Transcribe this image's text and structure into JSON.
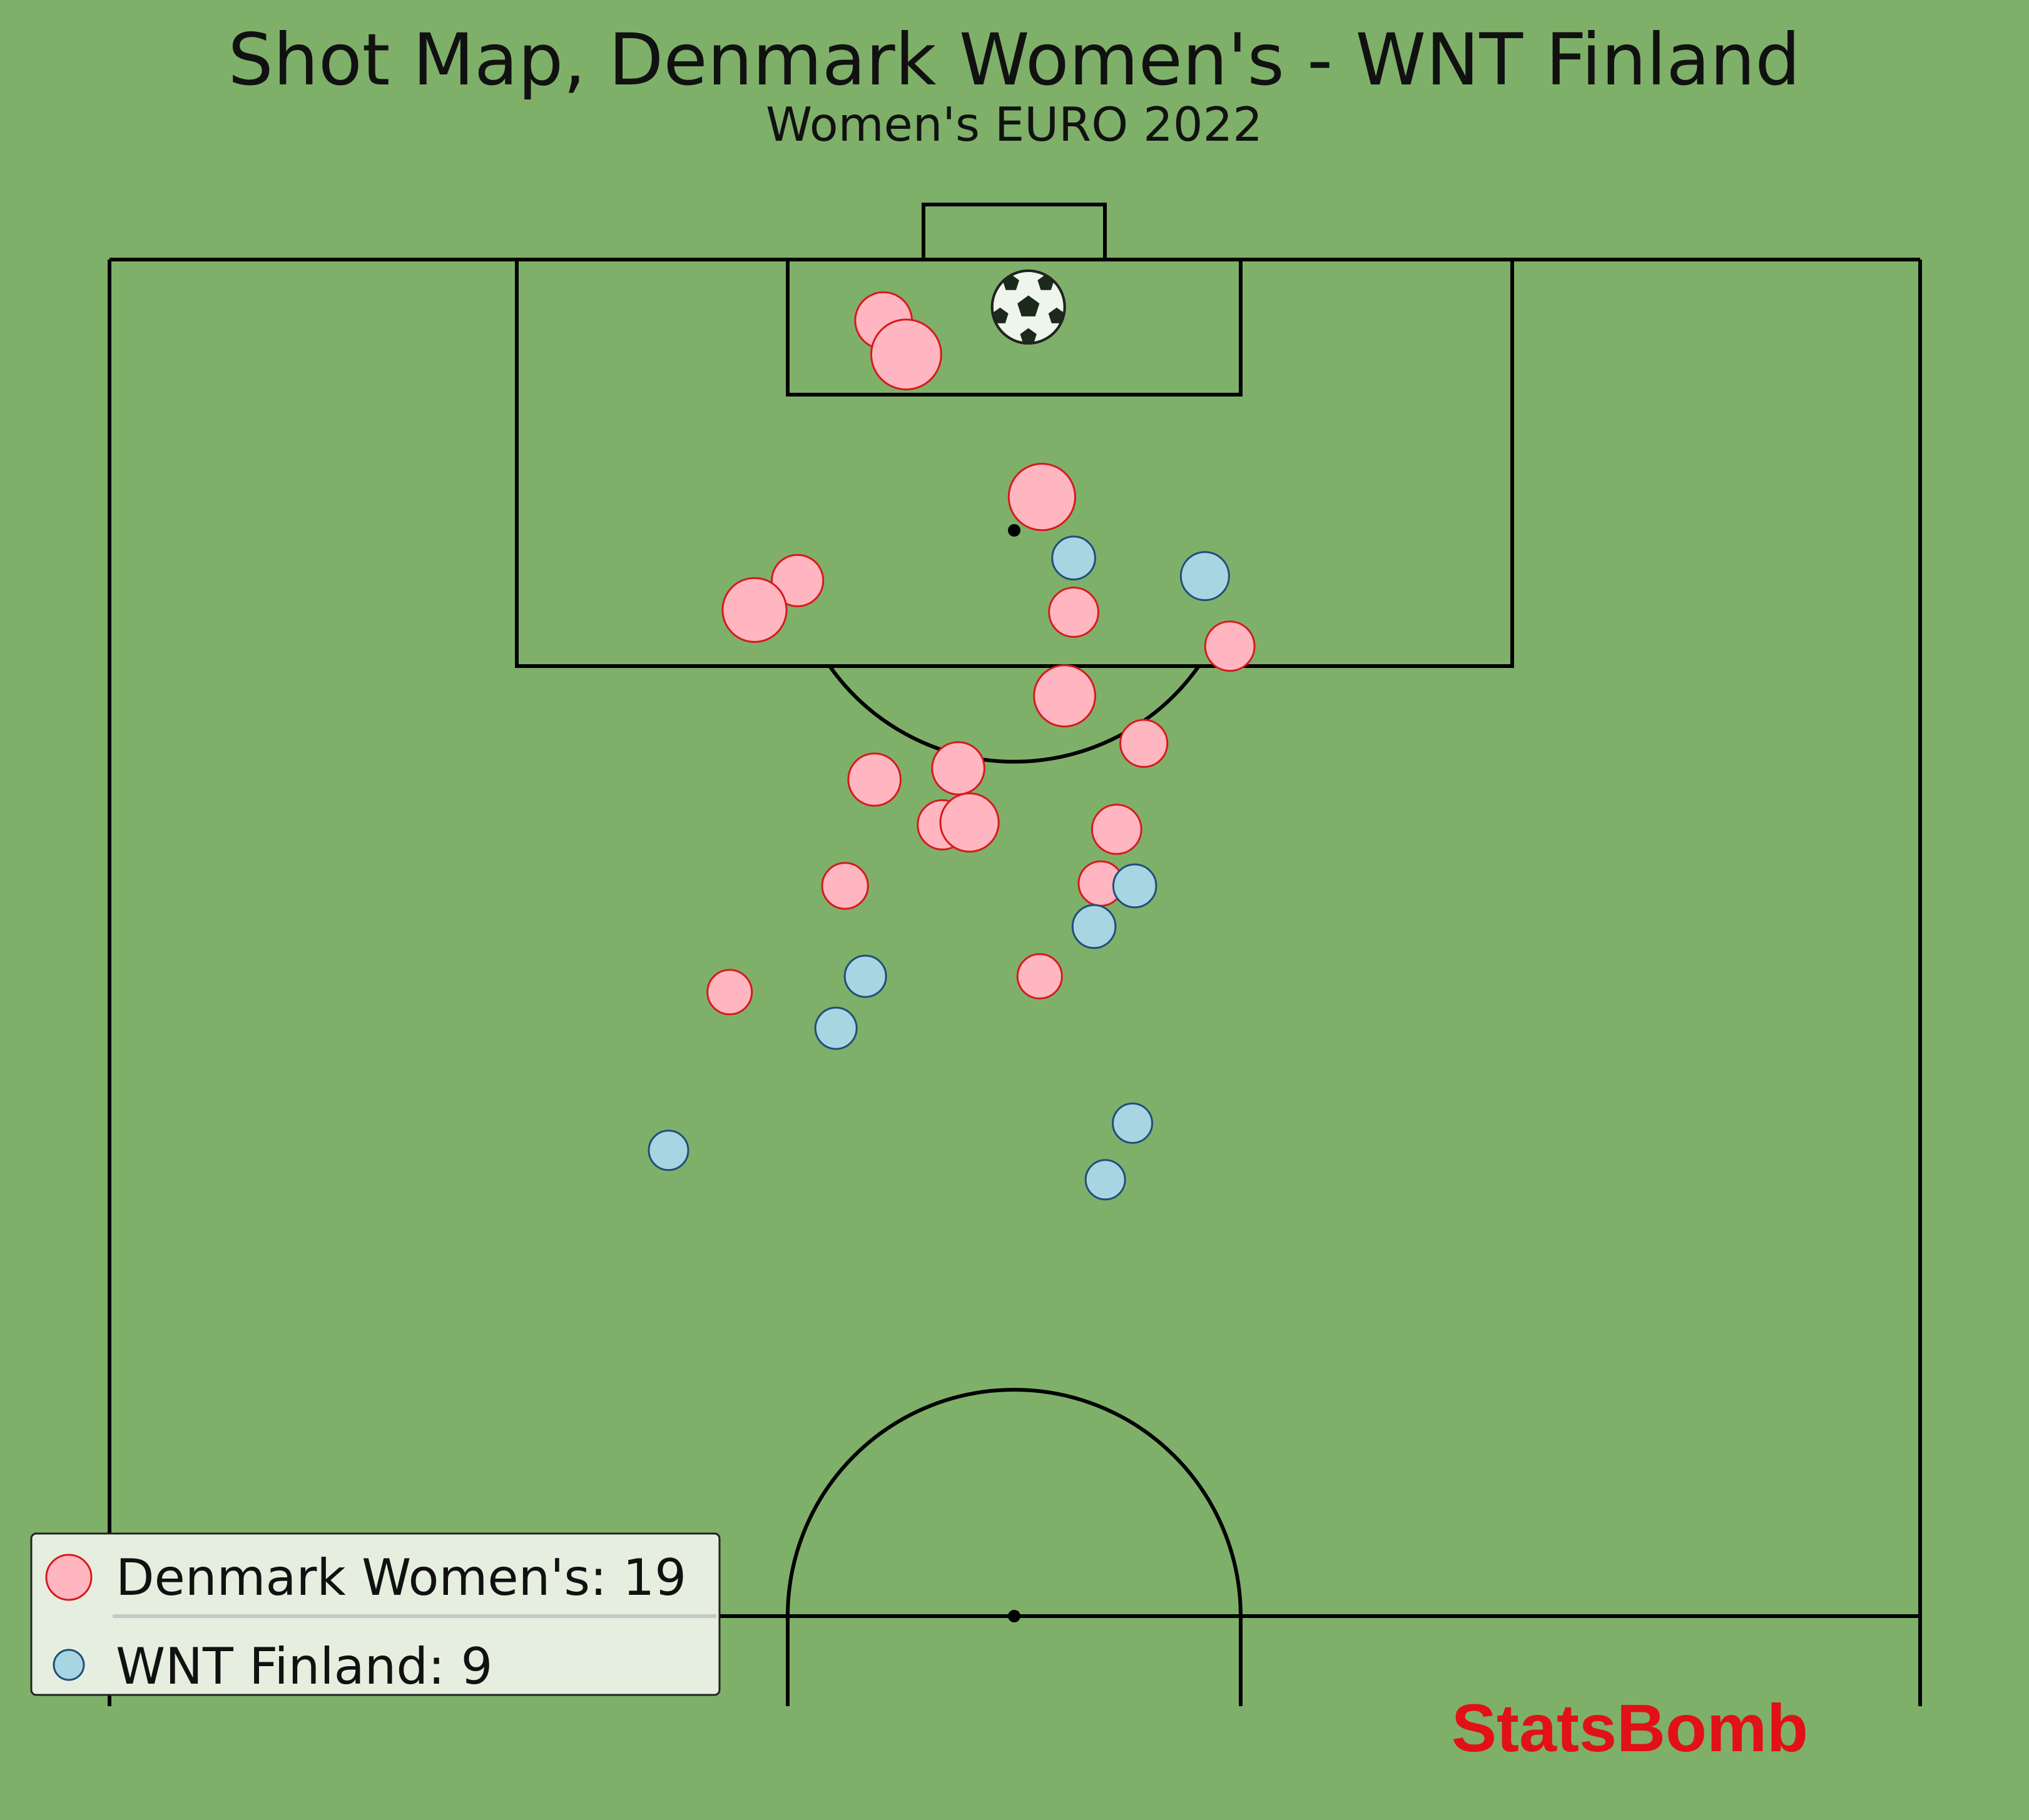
{
  "chart_data": {
    "type": "scatter",
    "title": "Shot Map, Denmark Women's - WNT Finland",
    "subtitle": "Women's EURO 2022",
    "pitch": "StatsBomb half-pitch, vertical, attacking upward",
    "legend_placement": "bottom-left",
    "series": [
      {
        "name": "Denmark Women's",
        "legend_label": "Denmark Women's: 19",
        "count": 19,
        "fill": "#ffb6c1",
        "edge": "#d7191c",
        "goals": [
          {
            "x": 117.9,
            "y": 40.6,
            "xg": 0.6
          }
        ],
        "shots": [
          {
            "x": 117.3,
            "y": 34.2,
            "xg": 0.18
          },
          {
            "x": 115.8,
            "y": 35.2,
            "xg": 0.38
          },
          {
            "x": 109.5,
            "y": 41.2,
            "xg": 0.32
          },
          {
            "x": 105.8,
            "y": 30.4,
            "xg": 0.12
          },
          {
            "x": 104.5,
            "y": 28.5,
            "xg": 0.28
          },
          {
            "x": 104.4,
            "y": 42.6,
            "xg": 0.1
          },
          {
            "x": 102.9,
            "y": 49.5,
            "xg": 0.1
          },
          {
            "x": 100.7,
            "y": 42.2,
            "xg": 0.24
          },
          {
            "x": 98.6,
            "y": 45.7,
            "xg": 0.08
          },
          {
            "x": 97.5,
            "y": 37.5,
            "xg": 0.13
          },
          {
            "x": 97.0,
            "y": 33.8,
            "xg": 0.13
          },
          {
            "x": 95.0,
            "y": 36.8,
            "xg": 0.1
          },
          {
            "x": 95.1,
            "y": 38.0,
            "xg": 0.2
          },
          {
            "x": 94.8,
            "y": 44.5,
            "xg": 0.1
          },
          {
            "x": 92.3,
            "y": 32.5,
            "xg": 0.07
          },
          {
            "x": 92.4,
            "y": 43.8,
            "xg": 0.06
          },
          {
            "x": 88.3,
            "y": 41.1,
            "xg": 0.06
          },
          {
            "x": 87.6,
            "y": 27.4,
            "xg": 0.06
          }
        ]
      },
      {
        "name": "WNT Finland",
        "legend_label": "WNT Finland: 9",
        "count": 9,
        "fill": "#a8d5e2",
        "edge": "#1f4e79",
        "goals": [],
        "shots": [
          {
            "x": 106.8,
            "y": 42.6,
            "xg": 0.05
          },
          {
            "x": 106.0,
            "y": 48.4,
            "xg": 0.09
          },
          {
            "x": 92.3,
            "y": 45.3,
            "xg": 0.05
          },
          {
            "x": 90.5,
            "y": 43.5,
            "xg": 0.05
          },
          {
            "x": 88.3,
            "y": 33.4,
            "xg": 0.04
          },
          {
            "x": 86.0,
            "y": 32.1,
            "xg": 0.04
          },
          {
            "x": 81.8,
            "y": 45.2,
            "xg": 0.03
          },
          {
            "x": 79.3,
            "y": 44.0,
            "xg": 0.03
          },
          {
            "x": 80.6,
            "y": 24.7,
            "xg": 0.03
          }
        ]
      }
    ]
  },
  "watermark": {
    "text": "StatsBomb",
    "color": "#e21017"
  },
  "colors": {
    "pitch": "#7fb069",
    "lines": "#000000",
    "legend_bg": "#e6efdf",
    "legend_edge": "#222222"
  }
}
